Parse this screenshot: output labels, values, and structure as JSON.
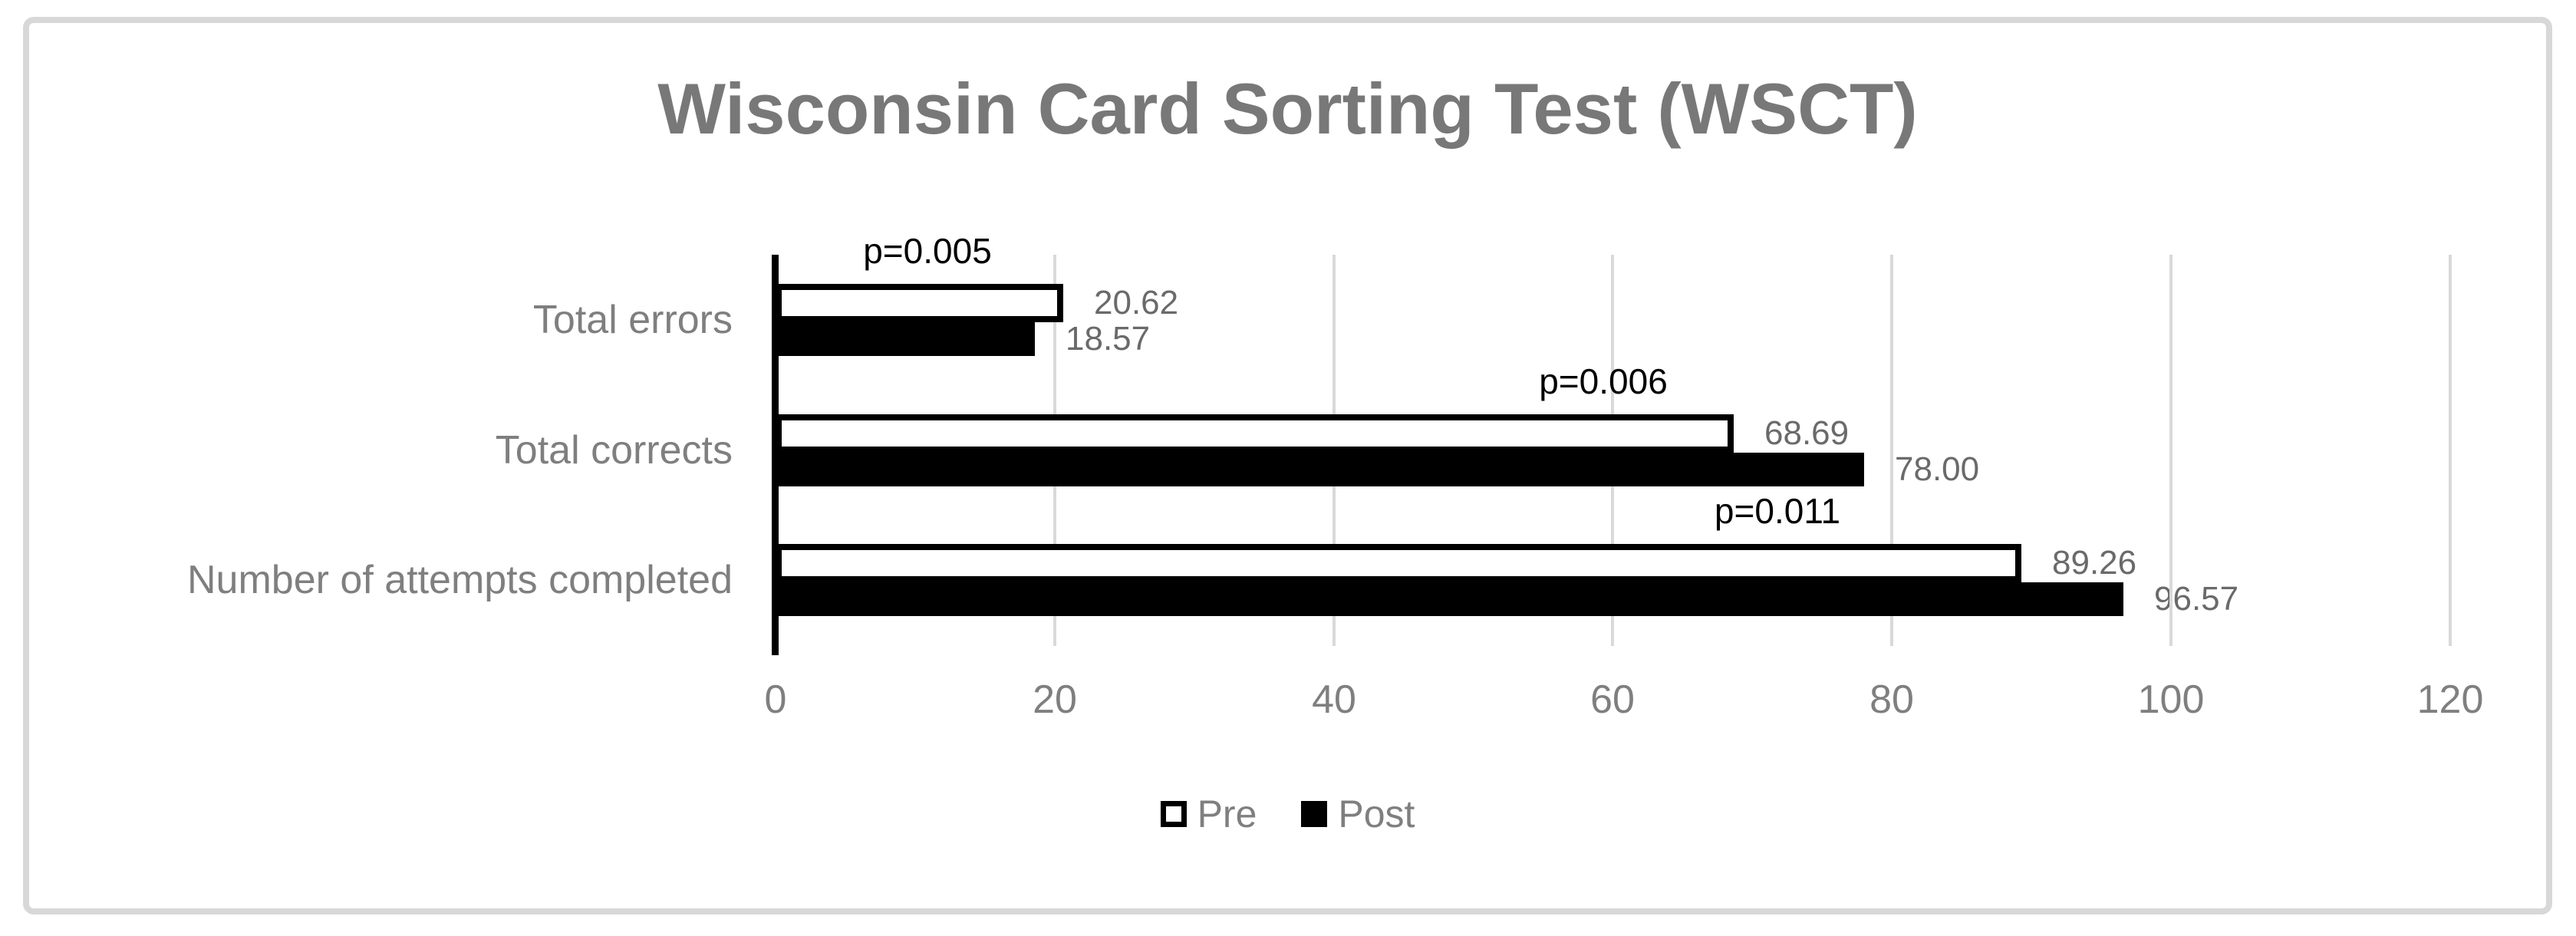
{
  "chart_data": {
    "type": "bar",
    "orientation": "horizontal",
    "title": "Wisconsin Card Sorting Test (WSCT)",
    "categories": [
      "Total errors",
      "Total corrects",
      "Number of attempts completed"
    ],
    "series": [
      {
        "name": "Pre",
        "values": [
          20.62,
          68.69,
          89.26
        ],
        "fill": "#ffffff",
        "stroke": "#000000"
      },
      {
        "name": "Post",
        "values": [
          18.57,
          78.0,
          96.57
        ],
        "fill": "#000000",
        "stroke": "#000000"
      }
    ],
    "data_label_format": "0.00",
    "annotations": [
      {
        "text": "p=0.005",
        "category": "Total errors",
        "x_value": 10.9
      },
      {
        "text": "p=0.006",
        "category": "Total corrects",
        "x_value": 59.3
      },
      {
        "text": "p=0.011",
        "category": "Number of attempts completed",
        "x_value": 71.8
      }
    ],
    "x_axis": {
      "ticks": [
        0,
        20,
        40,
        60,
        80,
        100,
        120
      ],
      "min": 0,
      "max": 120,
      "gridlines": true
    },
    "legend": {
      "position": "bottom",
      "entries": [
        "Pre",
        "Post"
      ]
    }
  },
  "colors": {
    "title": "#787878",
    "axis_labels": "#7f7f7f",
    "value_labels": "#6a6a6a",
    "annotation_text": "#000000",
    "gridline": "#d9d9d9",
    "axis_line": "#000000",
    "frame_border": "#d8d8d8",
    "pre_fill": "#ffffff",
    "pre_border": "#000000",
    "post_fill": "#000000",
    "background": "#ffffff"
  }
}
